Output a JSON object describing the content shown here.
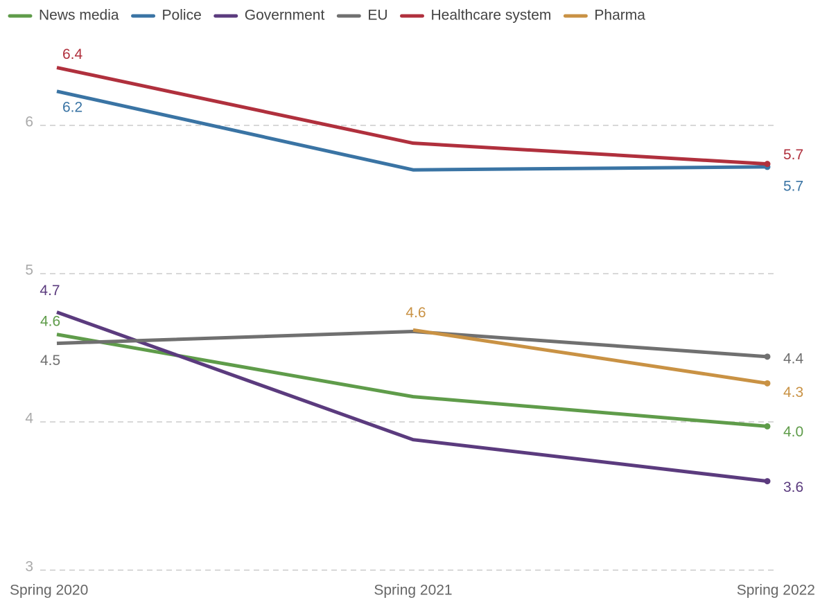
{
  "chart_data": {
    "type": "line",
    "categories": [
      "Spring 2020",
      "Spring 2021",
      "Spring 2022"
    ],
    "series": [
      {
        "name": "News media",
        "color": "#5f9c4a",
        "values": [
          4.59,
          4.17,
          3.97
        ],
        "value_labels": [
          "4.6",
          null,
          "4.0"
        ]
      },
      {
        "name": "Police",
        "color": "#3a74a4",
        "values": [
          6.23,
          5.7,
          5.72
        ],
        "value_labels": [
          "6.2",
          null,
          "5.7"
        ]
      },
      {
        "name": "Government",
        "color": "#5b3b7e",
        "values": [
          4.74,
          3.88,
          3.6
        ],
        "value_labels": [
          "4.7",
          null,
          "3.6"
        ]
      },
      {
        "name": "EU",
        "color": "#707070",
        "values": [
          4.53,
          4.61,
          4.44
        ],
        "value_labels": [
          "4.5",
          null,
          "4.4"
        ]
      },
      {
        "name": "Healthcare system",
        "color": "#b0303d",
        "values": [
          6.39,
          5.88,
          5.74
        ],
        "value_labels": [
          "6.4",
          null,
          "5.7"
        ]
      },
      {
        "name": "Pharma",
        "color": "#c99244",
        "values": [
          null,
          4.62,
          4.26
        ],
        "value_labels": [
          null,
          "4.6",
          "4.3"
        ]
      }
    ],
    "ylim": [
      3,
      6.65
    ],
    "yticks": [
      3,
      4,
      5,
      6
    ],
    "grid": true
  }
}
